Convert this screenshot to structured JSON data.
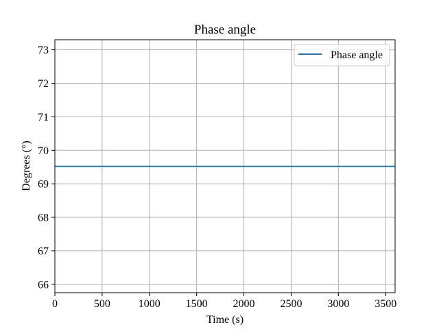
{
  "chart_data": {
    "type": "line",
    "title": "Phase angle",
    "xlabel": "Time (s)",
    "ylabel": "Degrees (°)",
    "xlim": [
      0,
      3600
    ],
    "ylim": [
      65.75,
      73.3
    ],
    "xticks": [
      0,
      500,
      1000,
      1500,
      2000,
      2500,
      3000,
      3500
    ],
    "yticks": [
      66,
      67,
      68,
      69,
      70,
      71,
      72,
      73
    ],
    "grid": true,
    "legend_position": "top-right",
    "series": [
      {
        "name": "Phase angle",
        "color": "#1f77b4",
        "x": [
          0,
          3600
        ],
        "y": [
          69.52,
          69.52
        ]
      }
    ]
  }
}
